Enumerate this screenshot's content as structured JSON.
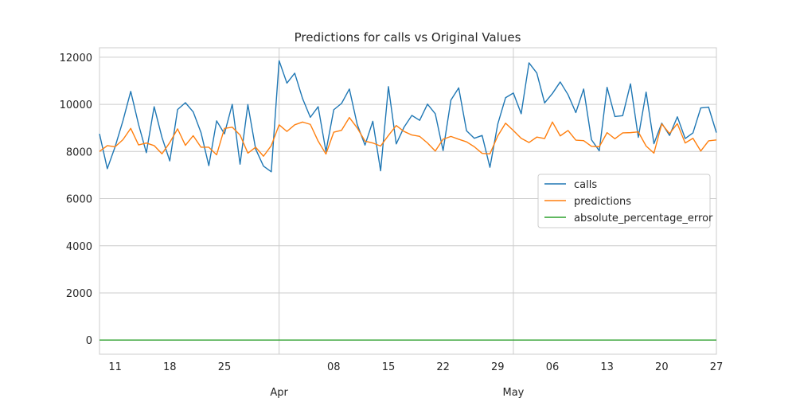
{
  "chart_data": {
    "type": "line",
    "title": "Predictions for calls vs Original Values",
    "xlabel": "",
    "ylabel": "",
    "x_start": "2024-03-09",
    "x_end": "2024-05-27",
    "ylim": [
      -600,
      12400
    ],
    "y_ticks": [
      0,
      2000,
      4000,
      6000,
      8000,
      10000,
      12000
    ],
    "x_minor_ticks": [
      {
        "date": "2024-03-11",
        "label": "11"
      },
      {
        "date": "2024-03-18",
        "label": "18"
      },
      {
        "date": "2024-03-25",
        "label": "25"
      },
      {
        "date": "2024-04-08",
        "label": "08"
      },
      {
        "date": "2024-04-15",
        "label": "15"
      },
      {
        "date": "2024-04-22",
        "label": "22"
      },
      {
        "date": "2024-04-29",
        "label": "29"
      },
      {
        "date": "2024-05-06",
        "label": "06"
      },
      {
        "date": "2024-05-13",
        "label": "13"
      },
      {
        "date": "2024-05-20",
        "label": "20"
      },
      {
        "date": "2024-05-27",
        "label": "27"
      }
    ],
    "x_major_ticks": [
      {
        "date": "2024-04-01",
        "label": "Apr"
      },
      {
        "date": "2024-05-01",
        "label": "May"
      }
    ],
    "grid": true,
    "legend_position": "center-right",
    "series": [
      {
        "name": "calls",
        "color": "#1f77b4",
        "values": [
          8750,
          7270,
          8200,
          9300,
          10550,
          9150,
          7950,
          9900,
          8600,
          7600,
          9780,
          10070,
          9680,
          8800,
          7400,
          9300,
          8750,
          10000,
          7460,
          9990,
          8100,
          7380,
          7140,
          11850,
          10900,
          11320,
          10250,
          9450,
          9900,
          8000,
          9770,
          10040,
          10650,
          9150,
          8270,
          9280,
          7180,
          10750,
          8320,
          9030,
          9530,
          9320,
          10010,
          9600,
          8040,
          10180,
          10700,
          8880,
          8560,
          8680,
          7330,
          9160,
          10280,
          10480,
          9600,
          11760,
          11330,
          10060,
          10460,
          10950,
          10410,
          9650,
          10650,
          8500,
          8030,
          10720,
          9480,
          9520,
          10870,
          8600,
          10520,
          8330,
          9200,
          8680,
          9470,
          8550,
          8790,
          9850,
          9880,
          8800
        ]
      },
      {
        "name": "predictions",
        "color": "#ff7f0e",
        "values": [
          8000,
          8250,
          8200,
          8500,
          8980,
          8280,
          8360,
          8250,
          7900,
          8380,
          8960,
          8260,
          8670,
          8180,
          8180,
          7860,
          8980,
          9030,
          8700,
          7930,
          8180,
          7800,
          8250,
          9130,
          8850,
          9130,
          9250,
          9150,
          8440,
          7890,
          8820,
          8900,
          9440,
          9000,
          8440,
          8360,
          8230,
          8680,
          9100,
          8850,
          8700,
          8640,
          8360,
          8020,
          8520,
          8640,
          8520,
          8410,
          8200,
          7920,
          7900,
          8660,
          9200,
          8890,
          8560,
          8380,
          8610,
          8550,
          9250,
          8660,
          8890,
          8480,
          8460,
          8220,
          8200,
          8800,
          8540,
          8790,
          8800,
          8830,
          8230,
          7930,
          9170,
          8760,
          9180,
          8360,
          8560,
          8020,
          8450,
          8490
        ]
      },
      {
        "name": "absolute_percentage_error",
        "color": "#2ca02c",
        "values": [
          0,
          0,
          0,
          0,
          0,
          0,
          0,
          0,
          0,
          0,
          0,
          0,
          0,
          0,
          0,
          0,
          0,
          0,
          0,
          0,
          0,
          0,
          0,
          0,
          0,
          0,
          0,
          0,
          0,
          0,
          0,
          0,
          0,
          0,
          0,
          0,
          0,
          0,
          0,
          0,
          0,
          0,
          0,
          0,
          0,
          0,
          0,
          0,
          0,
          0,
          0,
          0,
          0,
          0,
          0,
          0,
          0,
          0,
          0,
          0,
          0,
          0,
          0,
          0,
          0,
          0,
          0,
          0,
          0,
          0,
          0,
          0,
          0,
          0,
          0,
          0,
          0,
          0,
          0,
          0
        ]
      }
    ]
  }
}
